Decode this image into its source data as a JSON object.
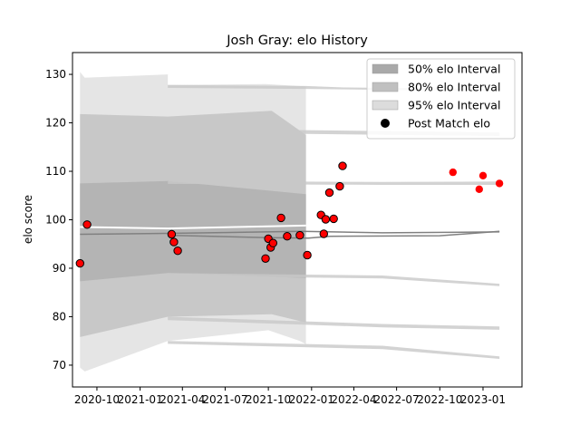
{
  "chart_data": {
    "type": "scatter",
    "title": "Josh Gray: elo History",
    "xlabel": "",
    "ylabel": "elo score",
    "xlim": [
      "2020-08-10",
      "2023-03-25"
    ],
    "ylim": [
      65.5,
      134.5
    ],
    "x_ticks": [
      "2020-10",
      "2021-01",
      "2021-04",
      "2021-07",
      "2021-10",
      "2022-01",
      "2022-04",
      "2022-07",
      "2022-10",
      "2023-01"
    ],
    "y_ticks": [
      70,
      80,
      90,
      100,
      110,
      120,
      130
    ],
    "grid": false,
    "legend_position": "top-right",
    "legend": [
      {
        "label": "50% elo Interval",
        "color": "#a9a9a9"
      },
      {
        "label": "80% elo Interval",
        "color": "#c0c0c0"
      },
      {
        "label": "95% elo Interval",
        "color": "#dcdcdc"
      },
      {
        "label": "Post Match elo",
        "color": "#000000"
      }
    ],
    "series": [
      {
        "name": "Post Match elo",
        "color": "#ff0000",
        "points": [
          {
            "x": "2020-08-26",
            "y": 91.0
          },
          {
            "x": "2020-09-10",
            "y": 99.0
          },
          {
            "x": "2021-03-09",
            "y": 97.0
          },
          {
            "x": "2021-03-14",
            "y": 95.4
          },
          {
            "x": "2021-03-22",
            "y": 93.6
          },
          {
            "x": "2021-09-25",
            "y": 92.0
          },
          {
            "x": "2021-10-01",
            "y": 96.1
          },
          {
            "x": "2021-10-06",
            "y": 94.3
          },
          {
            "x": "2021-10-11",
            "y": 95.2
          },
          {
            "x": "2021-10-28",
            "y": 100.4
          },
          {
            "x": "2021-11-10",
            "y": 96.6
          },
          {
            "x": "2021-12-07",
            "y": 96.8
          },
          {
            "x": "2021-12-23",
            "y": 92.7
          },
          {
            "x": "2022-01-21",
            "y": 101.0
          },
          {
            "x": "2022-01-27",
            "y": 97.1
          },
          {
            "x": "2022-01-31",
            "y": 100.1
          },
          {
            "x": "2022-02-08",
            "y": 105.6
          },
          {
            "x": "2022-02-17",
            "y": 100.2
          },
          {
            "x": "2022-03-02",
            "y": 106.9
          },
          {
            "x": "2022-03-08",
            "y": 111.1
          },
          {
            "x": "2022-10-29",
            "y": 109.8
          },
          {
            "x": "2022-12-24",
            "y": 106.3
          },
          {
            "x": "2023-01-01",
            "y": 109.1
          },
          {
            "x": "2023-02-05",
            "y": 107.5
          }
        ]
      }
    ]
  }
}
